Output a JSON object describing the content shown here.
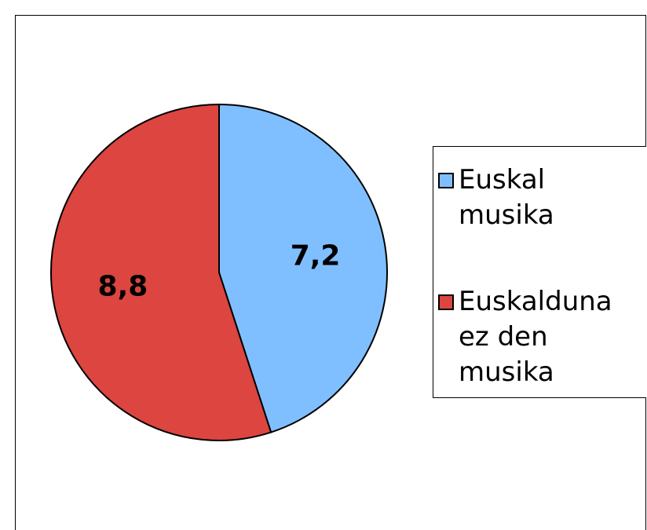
{
  "chart_data": {
    "type": "pie",
    "categories": [
      "Euskal musika",
      "Euskalduna ez den musika"
    ],
    "values": [
      7.2,
      8.8
    ],
    "value_labels": [
      "7,2",
      "8,8"
    ],
    "colors": [
      "#80bfff",
      "#dc4540"
    ],
    "legend": "right"
  }
}
